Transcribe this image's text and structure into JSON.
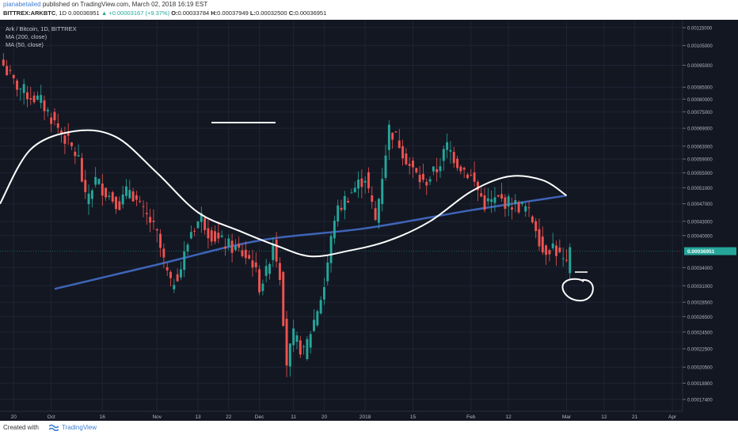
{
  "header": {
    "username": "pianabetailed",
    "published_text": "published on TradingView.com, March 02, 2018 16:19 EST",
    "symbol": "BITTREX:ARKBTC",
    "interval": "1D",
    "price": "0.00036951",
    "change_arrow": "▲",
    "change": "+0.00003167 (+9.37%)",
    "o_label": "O:",
    "o_value": "0.00033784",
    "h_label": "H:",
    "h_value": "0.00037949",
    "l_label": "L:",
    "l_value": "0.00032500",
    "c_label": "C:",
    "c_value": "0.00036951"
  },
  "legend": {
    "title": "Ark / Bitcoin, 1D, BITTREX",
    "ma200": "MA (200, close)",
    "ma50": "MA (50, close)"
  },
  "footer": {
    "created_with": "Created with",
    "brand": "TradingView"
  },
  "colors": {
    "background": "#131722",
    "grid": "#1f2433",
    "up": "#26a69a",
    "down": "#ef5350",
    "ma200": "#3f64b8",
    "drawing": "#ffffff",
    "last_price": "#26a69a"
  },
  "chart_data": {
    "type": "candlestick",
    "title": "Ark / Bitcoin, 1D, BITTREX",
    "last_price": 0.00036951,
    "y_ticks": [
      "0.00115000",
      "0.00105000",
      "0.00095000",
      "0.00085000",
      "0.00080000",
      "0.00075000",
      "0.00069000",
      "0.00063000",
      "0.00059000",
      "0.00055000",
      "0.00051000",
      "0.00047000",
      "0.00043000",
      "0.00040000",
      "0.00034000",
      "0.00031000",
      "0.00028500",
      "0.00026500",
      "0.00024500",
      "0.00022500",
      "0.00020500",
      "0.00018900",
      "0.00017400"
    ],
    "y_tick_values": [
      0.00115,
      0.00105,
      0.00095,
      0.00085,
      0.0008,
      0.00075,
      0.00069,
      0.00063,
      0.00059,
      0.00055,
      0.00051,
      0.00047,
      0.00043,
      0.0004,
      0.00034,
      0.00031,
      0.000285,
      0.000265,
      0.000245,
      0.000225,
      0.000205,
      0.000189,
      0.000174
    ],
    "y_scale": "log",
    "x_ticks": [
      "20",
      "Oct",
      "16",
      "Nov",
      "13",
      "22",
      "Dec",
      "11",
      "20",
      "2018",
      "15",
      "Feb",
      "12",
      "Mar",
      "12",
      "21",
      "Apr"
    ],
    "x_tick_dates": [
      "2017-09-20",
      "2017-10-01",
      "2017-10-16",
      "2017-11-01",
      "2017-11-13",
      "2017-11-22",
      "2017-12-01",
      "2017-12-11",
      "2017-12-20",
      "2018-01-01",
      "2018-01-15",
      "2018-02-01",
      "2018-02-12",
      "2018-03-01",
      "2018-03-12",
      "2018-03-21",
      "2018-04-01"
    ],
    "x_range": [
      "2017-09-16",
      "2018-04-04"
    ],
    "close_series": [
      {
        "date": "2017-09-17",
        "close": 0.00095
      },
      {
        "date": "2017-09-20",
        "close": 0.00087
      },
      {
        "date": "2017-09-24",
        "close": 0.00082
      },
      {
        "date": "2017-09-28",
        "close": 0.00079
      },
      {
        "date": "2017-10-02",
        "close": 0.00071
      },
      {
        "date": "2017-10-06",
        "close": 0.00064
      },
      {
        "date": "2017-10-09",
        "close": 0.00059
      },
      {
        "date": "2017-10-11",
        "close": 0.00048
      },
      {
        "date": "2017-10-14",
        "close": 0.00053
      },
      {
        "date": "2017-10-18",
        "close": 0.00049
      },
      {
        "date": "2017-10-21",
        "close": 0.00047
      },
      {
        "date": "2017-10-24",
        "close": 0.00051
      },
      {
        "date": "2017-10-27",
        "close": 0.00046
      },
      {
        "date": "2017-10-30",
        "close": 0.00043
      },
      {
        "date": "2017-11-01",
        "close": 0.0004
      },
      {
        "date": "2017-11-03",
        "close": 0.00035
      },
      {
        "date": "2017-11-05",
        "close": 0.00031
      },
      {
        "date": "2017-11-08",
        "close": 0.00034
      },
      {
        "date": "2017-11-11",
        "close": 0.00041
      },
      {
        "date": "2017-11-14",
        "close": 0.00044
      },
      {
        "date": "2017-11-16",
        "close": 0.00041
      },
      {
        "date": "2017-11-19",
        "close": 0.00039
      },
      {
        "date": "2017-11-22",
        "close": 0.00038
      },
      {
        "date": "2017-11-25",
        "close": 0.00037
      },
      {
        "date": "2017-11-27",
        "close": 0.00036
      },
      {
        "date": "2017-11-29",
        "close": 0.00035
      },
      {
        "date": "2017-12-01",
        "close": 0.00031
      },
      {
        "date": "2017-12-03",
        "close": 0.00033
      },
      {
        "date": "2017-12-05",
        "close": 0.00039
      },
      {
        "date": "2017-12-07",
        "close": 0.00033
      },
      {
        "date": "2017-12-09",
        "close": 0.00021
      },
      {
        "date": "2017-12-11",
        "close": 0.00024
      },
      {
        "date": "2017-12-14",
        "close": 0.00022
      },
      {
        "date": "2017-12-17",
        "close": 0.00026
      },
      {
        "date": "2017-12-20",
        "close": 0.00031
      },
      {
        "date": "2017-12-23",
        "close": 0.00044
      },
      {
        "date": "2017-12-26",
        "close": 0.00048
      },
      {
        "date": "2017-12-29",
        "close": 0.00051
      },
      {
        "date": "2018-01-01",
        "close": 0.00054
      },
      {
        "date": "2018-01-04",
        "close": 0.00043
      },
      {
        "date": "2018-01-08",
        "close": 0.00069
      },
      {
        "date": "2018-01-11",
        "close": 0.00064
      },
      {
        "date": "2018-01-14",
        "close": 0.00057
      },
      {
        "date": "2018-01-18",
        "close": 0.00052
      },
      {
        "date": "2018-01-22",
        "close": 0.00056
      },
      {
        "date": "2018-01-25",
        "close": 0.00063
      },
      {
        "date": "2018-01-28",
        "close": 0.00058
      },
      {
        "date": "2018-02-01",
        "close": 0.00054
      },
      {
        "date": "2018-02-05",
        "close": 0.00047
      },
      {
        "date": "2018-02-09",
        "close": 0.00048
      },
      {
        "date": "2018-02-13",
        "close": 0.00047
      },
      {
        "date": "2018-02-17",
        "close": 0.00046
      },
      {
        "date": "2018-02-20",
        "close": 0.00042
      },
      {
        "date": "2018-02-22",
        "close": 0.00037
      },
      {
        "date": "2018-02-25",
        "close": 0.00038
      },
      {
        "date": "2018-02-27",
        "close": 0.00036
      },
      {
        "date": "2018-03-01",
        "close": 0.00034
      },
      {
        "date": "2018-03-02",
        "close": 0.00036951
      }
    ],
    "ma200_series": [
      {
        "date": "2017-10-02",
        "value": 0.000305
      },
      {
        "date": "2017-11-01",
        "value": 0.000345
      },
      {
        "date": "2017-12-01",
        "value": 0.00039
      },
      {
        "date": "2018-01-01",
        "value": 0.000415
      },
      {
        "date": "2018-02-01",
        "value": 0.000455
      },
      {
        "date": "2018-03-01",
        "value": 0.00049
      }
    ],
    "ma50_drawn": [
      {
        "date": "2017-09-16",
        "value": 0.00047
      },
      {
        "date": "2017-09-25",
        "value": 0.00062
      },
      {
        "date": "2017-10-08",
        "value": 0.00068
      },
      {
        "date": "2017-10-20",
        "value": 0.00066
      },
      {
        "date": "2017-11-01",
        "value": 0.00055
      },
      {
        "date": "2017-11-13",
        "value": 0.00045
      },
      {
        "date": "2017-11-25",
        "value": 0.00041
      },
      {
        "date": "2017-12-06",
        "value": 0.00038
      },
      {
        "date": "2017-12-16",
        "value": 0.00036
      },
      {
        "date": "2017-12-27",
        "value": 0.00037
      },
      {
        "date": "2018-01-08",
        "value": 0.00039
      },
      {
        "date": "2018-01-20",
        "value": 0.00043
      },
      {
        "date": "2018-02-01",
        "value": 0.0005
      },
      {
        "date": "2018-02-12",
        "value": 0.00054
      },
      {
        "date": "2018-02-22",
        "value": 0.00053
      },
      {
        "date": "2018-03-01",
        "value": 0.00049
      }
    ],
    "grid": true
  }
}
